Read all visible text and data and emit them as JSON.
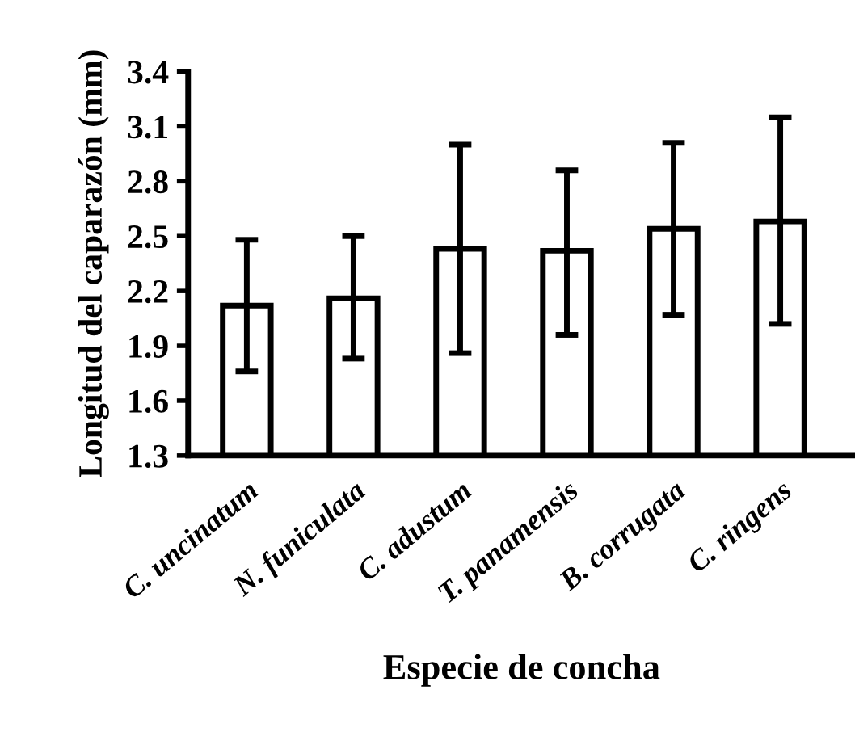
{
  "chart_data": {
    "type": "bar",
    "xlabel": "Especie de concha",
    "ylabel": "Longitud del caparazón (mm)",
    "categories": [
      "C. uncinatum",
      "N. funiculata",
      "C. adustum",
      "T. panamensis",
      "B. corrugata",
      "C. ringens"
    ],
    "values": [
      2.12,
      2.16,
      2.43,
      2.42,
      2.54,
      2.58
    ],
    "errors": [
      [
        1.76,
        2.48
      ],
      [
        1.83,
        2.5
      ],
      [
        1.86,
        3.0
      ],
      [
        1.96,
        2.86
      ],
      [
        2.07,
        3.01
      ],
      [
        2.02,
        3.15
      ]
    ],
    "color": "#ffffff",
    "ylim": [
      1.3,
      3.4
    ],
    "yticks": [
      1.3,
      1.6,
      1.9,
      2.2,
      2.5,
      2.8,
      3.1,
      3.4
    ],
    "grid": false,
    "legend": false
  }
}
